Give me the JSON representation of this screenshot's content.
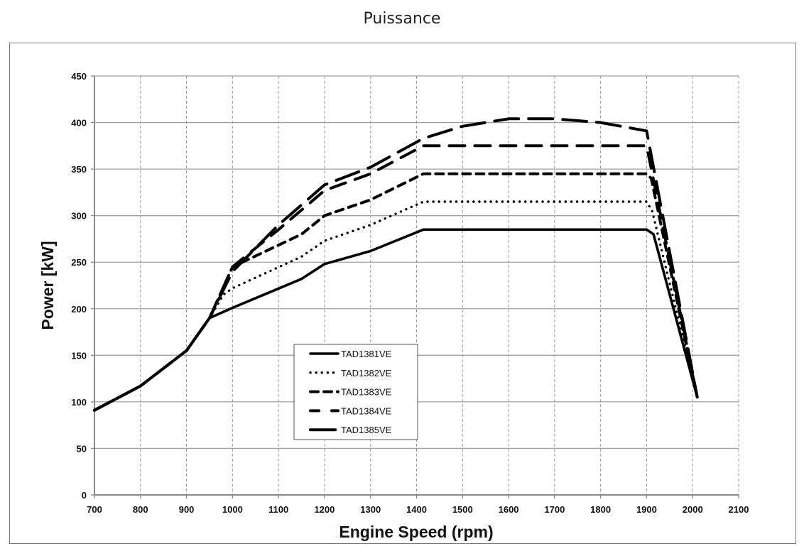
{
  "title": "Puissance",
  "chart_data": {
    "type": "line",
    "title": "Puissance",
    "xlabel": "Engine Speed (rpm)",
    "ylabel": "Power [kW]",
    "xlim": [
      700,
      2100
    ],
    "ylim": [
      0,
      450
    ],
    "xticks": [
      700,
      800,
      900,
      1000,
      1100,
      1200,
      1300,
      1400,
      1500,
      1600,
      1700,
      1800,
      1900,
      2000,
      2100
    ],
    "yticks": [
      0,
      50,
      100,
      150,
      200,
      250,
      300,
      350,
      400,
      450
    ],
    "grid": {
      "x": "dashed",
      "y": "solid"
    },
    "legend_position": "center-left",
    "series": [
      {
        "name": "TAD1381VE",
        "style": "solid",
        "x": [
          700,
          800,
          900,
          950,
          1000,
          1150,
          1200,
          1300,
          1415,
          1900,
          1915,
          2010
        ],
        "y": [
          91,
          117,
          155,
          190,
          201,
          232,
          248,
          262,
          285,
          285,
          280,
          105
        ]
      },
      {
        "name": "TAD1382VE",
        "style": "dotted",
        "x": [
          700,
          800,
          900,
          950,
          980,
          1000,
          1150,
          1200,
          1300,
          1415,
          1900,
          1912,
          2010
        ],
        "y": [
          91,
          117,
          155,
          190,
          215,
          222,
          256,
          273,
          290,
          315,
          315,
          305,
          105
        ]
      },
      {
        "name": "TAD1383VE",
        "style": "dashed",
        "x": [
          700,
          800,
          900,
          950,
          1000,
          1150,
          1200,
          1300,
          1415,
          1900,
          1910,
          2010
        ],
        "y": [
          91,
          117,
          155,
          190,
          245,
          280,
          300,
          317,
          345,
          345,
          340,
          105
        ]
      },
      {
        "name": "TAD1384VE",
        "style": "long-dash",
        "x": [
          700,
          800,
          900,
          950,
          1000,
          1100,
          1200,
          1300,
          1415,
          1900,
          2010
        ],
        "y": [
          91,
          117,
          155,
          190,
          245,
          285,
          327,
          345,
          375,
          375,
          105
        ]
      },
      {
        "name": "TAD1385VE",
        "style": "long-dash-heavy",
        "x": [
          700,
          800,
          900,
          950,
          1000,
          1100,
          1200,
          1300,
          1415,
          1500,
          1600,
          1700,
          1800,
          1900,
          2010
        ],
        "y": [
          91,
          117,
          155,
          190,
          240,
          290,
          333,
          352,
          383,
          396,
          404,
          404,
          400,
          391,
          105
        ]
      }
    ]
  }
}
